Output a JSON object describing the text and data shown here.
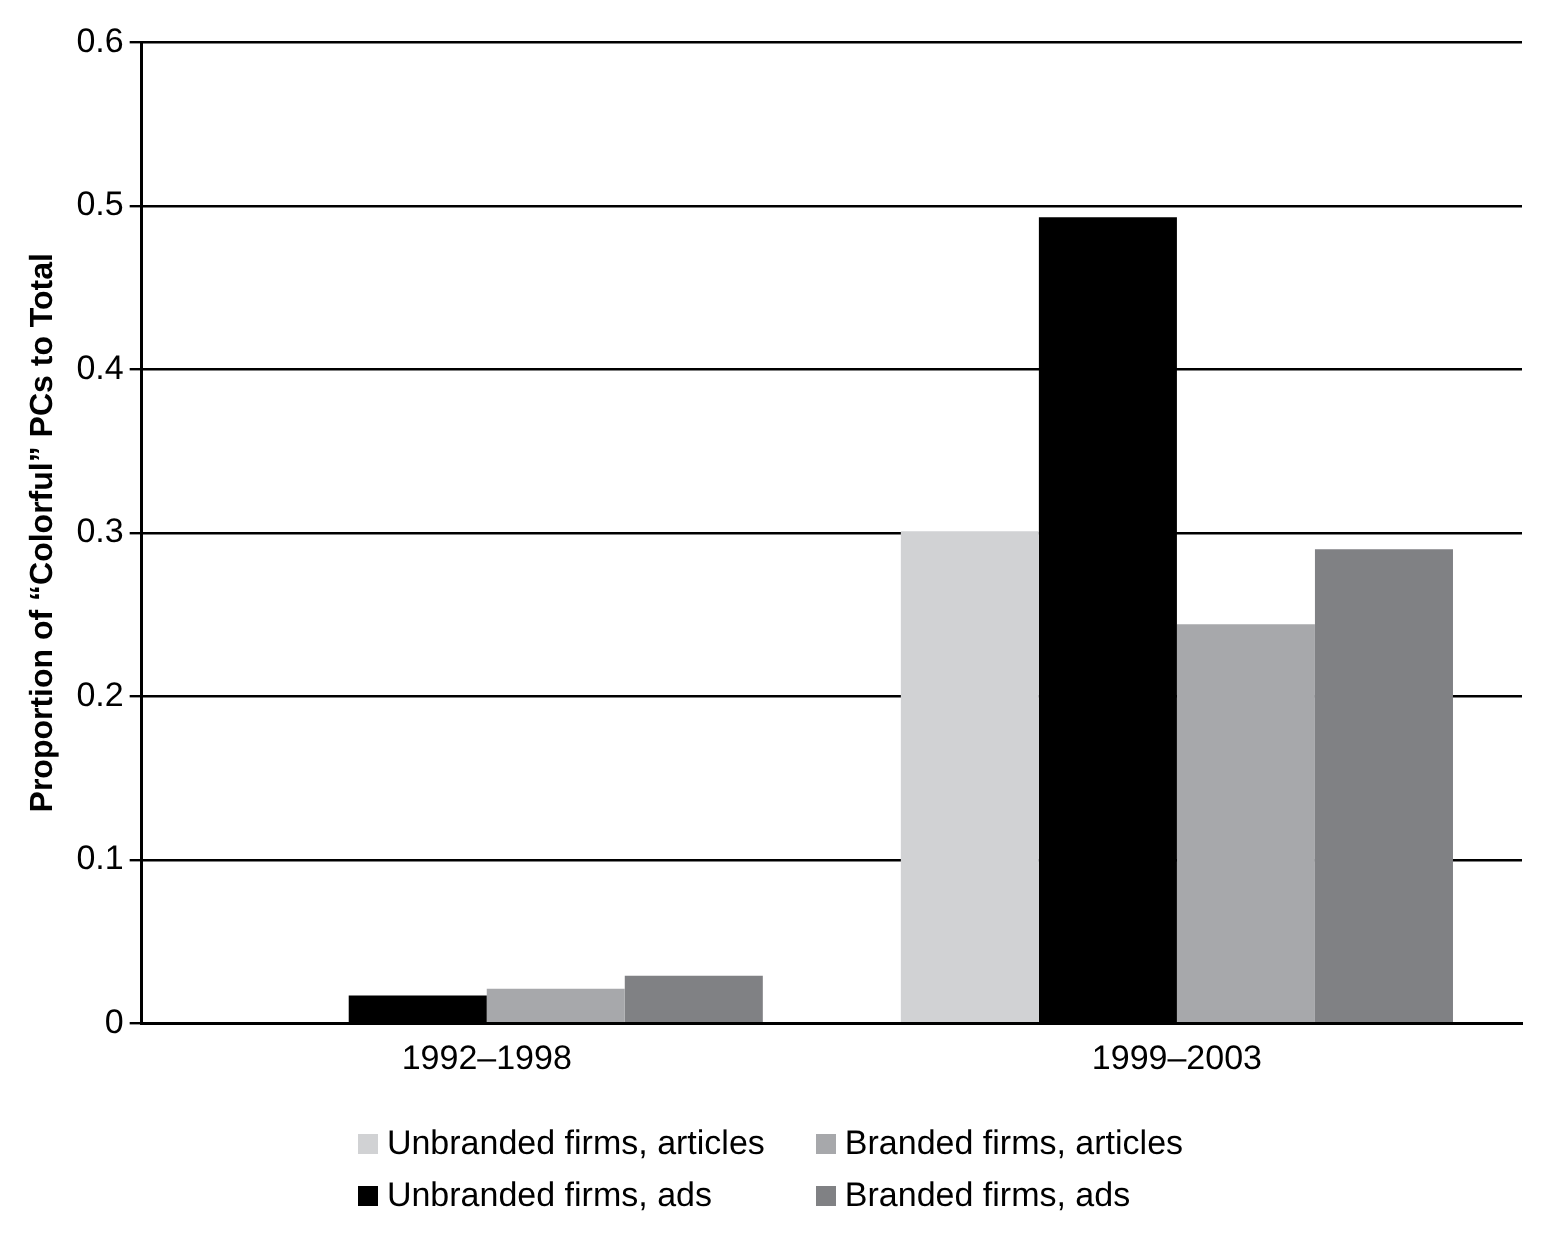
{
  "chart_data": {
    "type": "bar",
    "ylabel": "Proportion of “Colorful” PCs to Total",
    "categories": [
      "1992–1998",
      "1999–2003"
    ],
    "series": [
      {
        "name": "Unbranded firms, articles",
        "color": "#d1d2d4",
        "values": [
          0,
          0.301
        ]
      },
      {
        "name": "Unbranded firms, ads",
        "color": "#000000",
        "values": [
          0.017,
          0.493
        ]
      },
      {
        "name": "Branded firms, articles",
        "color": "#a7a8ab",
        "values": [
          0.021,
          0.244
        ]
      },
      {
        "name": "Branded firms, ads",
        "color": "#808184",
        "values": [
          0.029,
          0.29
        ]
      }
    ],
    "ylim": [
      0,
      0.6
    ],
    "yticks": [
      0,
      0.1,
      0.2,
      0.3,
      0.4,
      0.5,
      0.6
    ],
    "grid": "y",
    "legend": "bottom"
  }
}
